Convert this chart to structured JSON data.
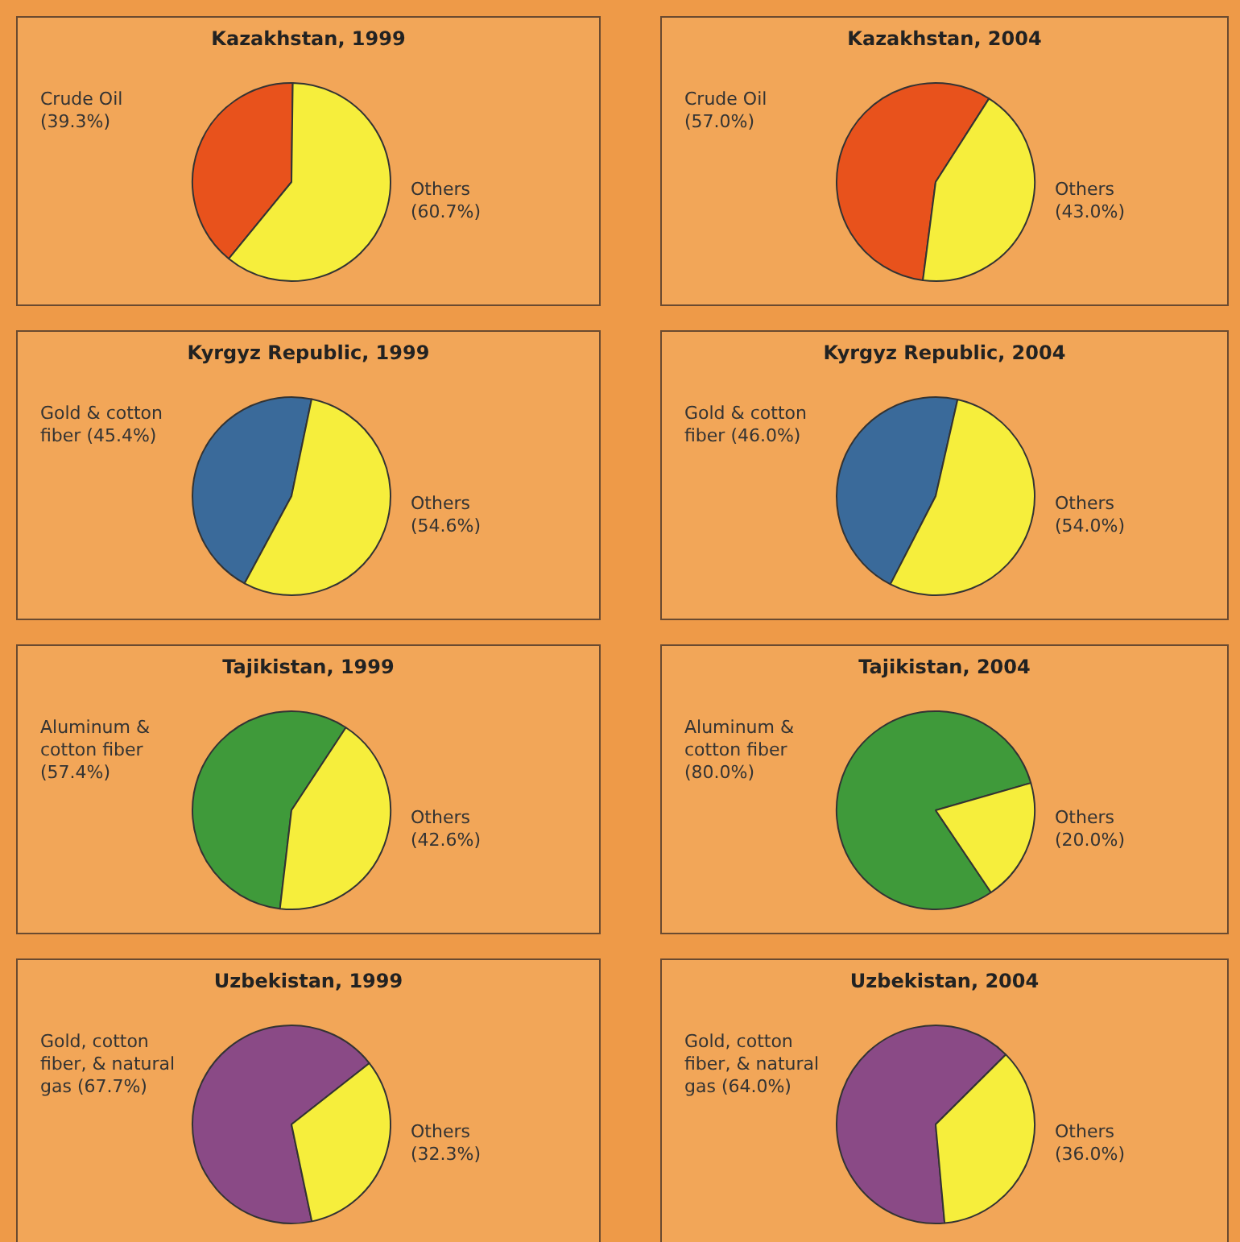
{
  "chart_data": [
    {
      "type": "pie",
      "title": "Kazakhstan, 1999",
      "categories": [
        "Crude Oil",
        "Others"
      ],
      "values": [
        39.3,
        60.7
      ],
      "colors": [
        "#e8521c",
        "#f6ee3c"
      ],
      "value_labels": [
        "(39.3%)",
        "(60.7%)"
      ]
    },
    {
      "type": "pie",
      "title": "Kazakhstan, 2004",
      "categories": [
        "Crude Oil",
        "Others"
      ],
      "values": [
        57.0,
        43.0
      ],
      "colors": [
        "#e8521c",
        "#f6ee3c"
      ],
      "value_labels": [
        "(57.0%)",
        "(43.0%)"
      ]
    },
    {
      "type": "pie",
      "title": "Kyrgyz Republic, 1999",
      "categories": [
        "Gold & cotton fiber",
        "Others"
      ],
      "values": [
        45.4,
        54.6
      ],
      "colors": [
        "#3a6a9a",
        "#f6ee3c"
      ],
      "value_labels": [
        "(45.4%)",
        "(54.6%)"
      ]
    },
    {
      "type": "pie",
      "title": "Kyrgyz Republic, 2004",
      "categories": [
        "Gold & cotton fiber",
        "Others"
      ],
      "values": [
        46.0,
        54.0
      ],
      "colors": [
        "#3a6a9a",
        "#f6ee3c"
      ],
      "value_labels": [
        "(46.0%)",
        "(54.0%)"
      ]
    },
    {
      "type": "pie",
      "title": "Tajikistan, 1999",
      "categories": [
        "Aluminum & cotton fiber",
        "Others"
      ],
      "values": [
        57.4,
        42.6
      ],
      "colors": [
        "#3f9a3a",
        "#f6ee3c"
      ],
      "value_labels": [
        "(57.4%)",
        "(42.6%)"
      ]
    },
    {
      "type": "pie",
      "title": "Tajikistan, 2004",
      "categories": [
        "Aluminum & cotton fiber",
        "Others"
      ],
      "values": [
        80.0,
        20.0
      ],
      "colors": [
        "#3f9a3a",
        "#f6ee3c"
      ],
      "value_labels": [
        "(80.0%)",
        "(20.0%)"
      ]
    },
    {
      "type": "pie",
      "title": "Uzbekistan, 1999",
      "categories": [
        "Gold, cotton fiber, & natural gas",
        "Others"
      ],
      "values": [
        67.7,
        32.3
      ],
      "colors": [
        "#8a4a86",
        "#f6ee3c"
      ],
      "value_labels": [
        "(67.7%)",
        "(32.3%)"
      ]
    },
    {
      "type": "pie",
      "title": "Uzbekistan, 2004",
      "categories": [
        "Gold, cotton fiber, & natural gas",
        "Others"
      ],
      "values": [
        64.0,
        36.0
      ],
      "colors": [
        "#8a4a86",
        "#f6ee3c"
      ],
      "value_labels": [
        "(64.0%)",
        "(36.0%)"
      ]
    }
  ]
}
